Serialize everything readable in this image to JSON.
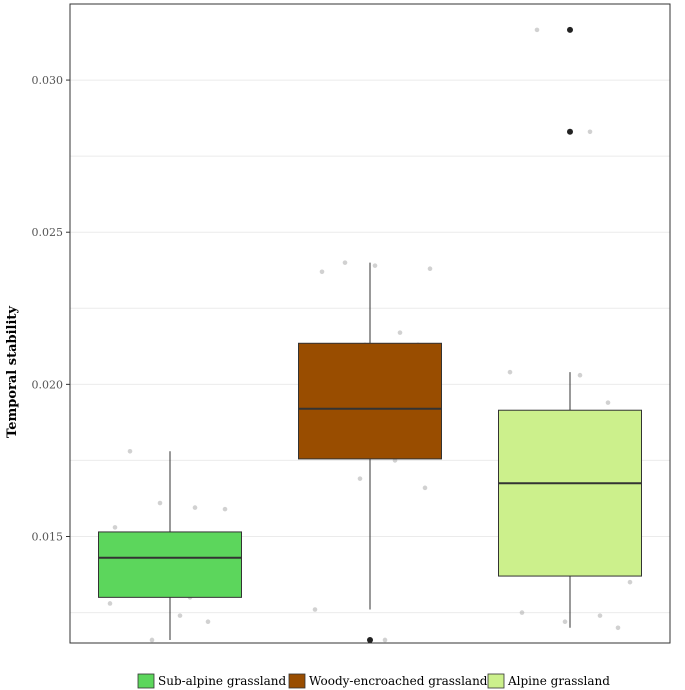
{
  "chart_data": {
    "type": "box",
    "title": "",
    "xlabel": "",
    "ylabel": "Temporal stability",
    "ylim": [
      0.0115,
      0.0325
    ],
    "yticks": [
      0.015,
      0.02,
      0.025,
      0.03
    ],
    "ytick_labels": [
      "0.015",
      "0.020",
      "0.025",
      "0.030"
    ],
    "grid": true,
    "legend_position": "bottom",
    "series": [
      {
        "name": "Sub-alpine grassland",
        "color": "#5cd65c",
        "whisker_low": 0.0116,
        "q1": 0.013,
        "median": 0.0143,
        "q3": 0.01515,
        "whisker_high": 0.0178,
        "outliers": [],
        "points": [
          0.0178,
          0.01595,
          0.0161,
          0.0159,
          0.0153,
          0.015,
          0.0149,
          0.0148,
          0.0147,
          0.0145,
          0.0143,
          0.0141,
          0.0135,
          0.0133,
          0.0132,
          0.013,
          0.0128,
          0.0124,
          0.0122,
          0.0116
        ]
      },
      {
        "name": "Woody-encroached grassland",
        "color": "#994d00",
        "whisker_low": 0.0126,
        "q1": 0.01755,
        "median": 0.0192,
        "q3": 0.02135,
        "whisker_high": 0.024,
        "outliers": [
          0.0116
        ],
        "points": [
          0.024,
          0.0239,
          0.0238,
          0.0237,
          0.0217,
          0.0213,
          0.0213,
          0.0206,
          0.0198,
          0.0197,
          0.0188,
          0.0186,
          0.0185,
          0.0184,
          0.0175,
          0.0169,
          0.0166,
          0.0126,
          0.0116
        ]
      },
      {
        "name": "Alpine grassland",
        "color": "#ccf08c",
        "whisker_low": 0.012,
        "q1": 0.0137,
        "median": 0.01675,
        "q3": 0.01915,
        "whisker_high": 0.0204,
        "outliers": [
          0.03165,
          0.0283
        ],
        "points": [
          0.03165,
          0.0283,
          0.0204,
          0.0203,
          0.0194,
          0.019,
          0.0189,
          0.0185,
          0.018,
          0.0177,
          0.0158,
          0.0154,
          0.0149,
          0.014,
          0.0138,
          0.0135,
          0.0125,
          0.0124,
          0.0122,
          0.012
        ]
      }
    ]
  }
}
